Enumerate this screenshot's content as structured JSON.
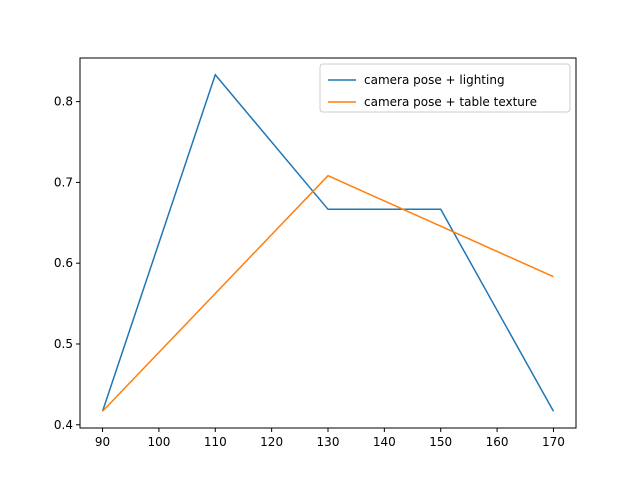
{
  "chart_data": {
    "type": "line",
    "title": "",
    "xlabel": "",
    "ylabel": "",
    "x": [
      90,
      110,
      130,
      150,
      170
    ],
    "series": [
      {
        "name": "camera pose + lighting",
        "color": "#1f77b4",
        "values": [
          0.4167,
          0.8333,
          0.6667,
          0.6667,
          0.4167
        ]
      },
      {
        "name": "camera pose + table texture",
        "color": "#ff7f0e",
        "values": [
          0.4167,
          0.5625,
          0.7083,
          0.6458,
          0.5833
        ]
      }
    ],
    "xlim": [
      86,
      174
    ],
    "ylim": [
      0.396,
      0.854
    ],
    "xticks": [
      90,
      100,
      110,
      120,
      130,
      140,
      150,
      160,
      170
    ],
    "yticks": [
      0.4,
      0.5,
      0.6,
      0.7,
      0.8
    ],
    "grid": false,
    "legend_position": "upper right"
  }
}
